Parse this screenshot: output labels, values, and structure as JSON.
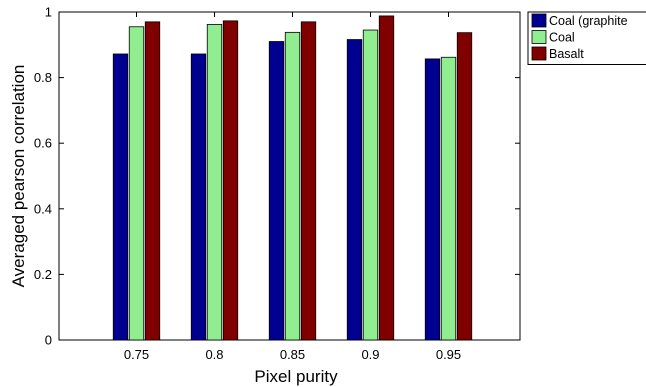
{
  "chart_data": {
    "type": "bar",
    "title": "",
    "xlabel": "Pixel purity",
    "ylabel": "Averaged pearson correlation",
    "categories": [
      "0.75",
      "0.8",
      "0.85",
      "0.9",
      "0.95"
    ],
    "ylim": [
      0,
      1
    ],
    "yticks": [
      "0",
      "0.2",
      "0.4",
      "0.6",
      "0.8",
      "1"
    ],
    "grid": false,
    "legend_position": "top-right",
    "series": [
      {
        "name": "Coal (graphite",
        "color": "#000090",
        "values": [
          0.872,
          0.872,
          0.91,
          0.916,
          0.857
        ]
      },
      {
        "name": "Coal",
        "color": "#90ee90",
        "values": [
          0.955,
          0.962,
          0.938,
          0.945,
          0.862
        ]
      },
      {
        "name": "Basalt",
        "color": "#800000",
        "values": [
          0.97,
          0.973,
          0.97,
          0.988,
          0.937
        ]
      }
    ]
  }
}
